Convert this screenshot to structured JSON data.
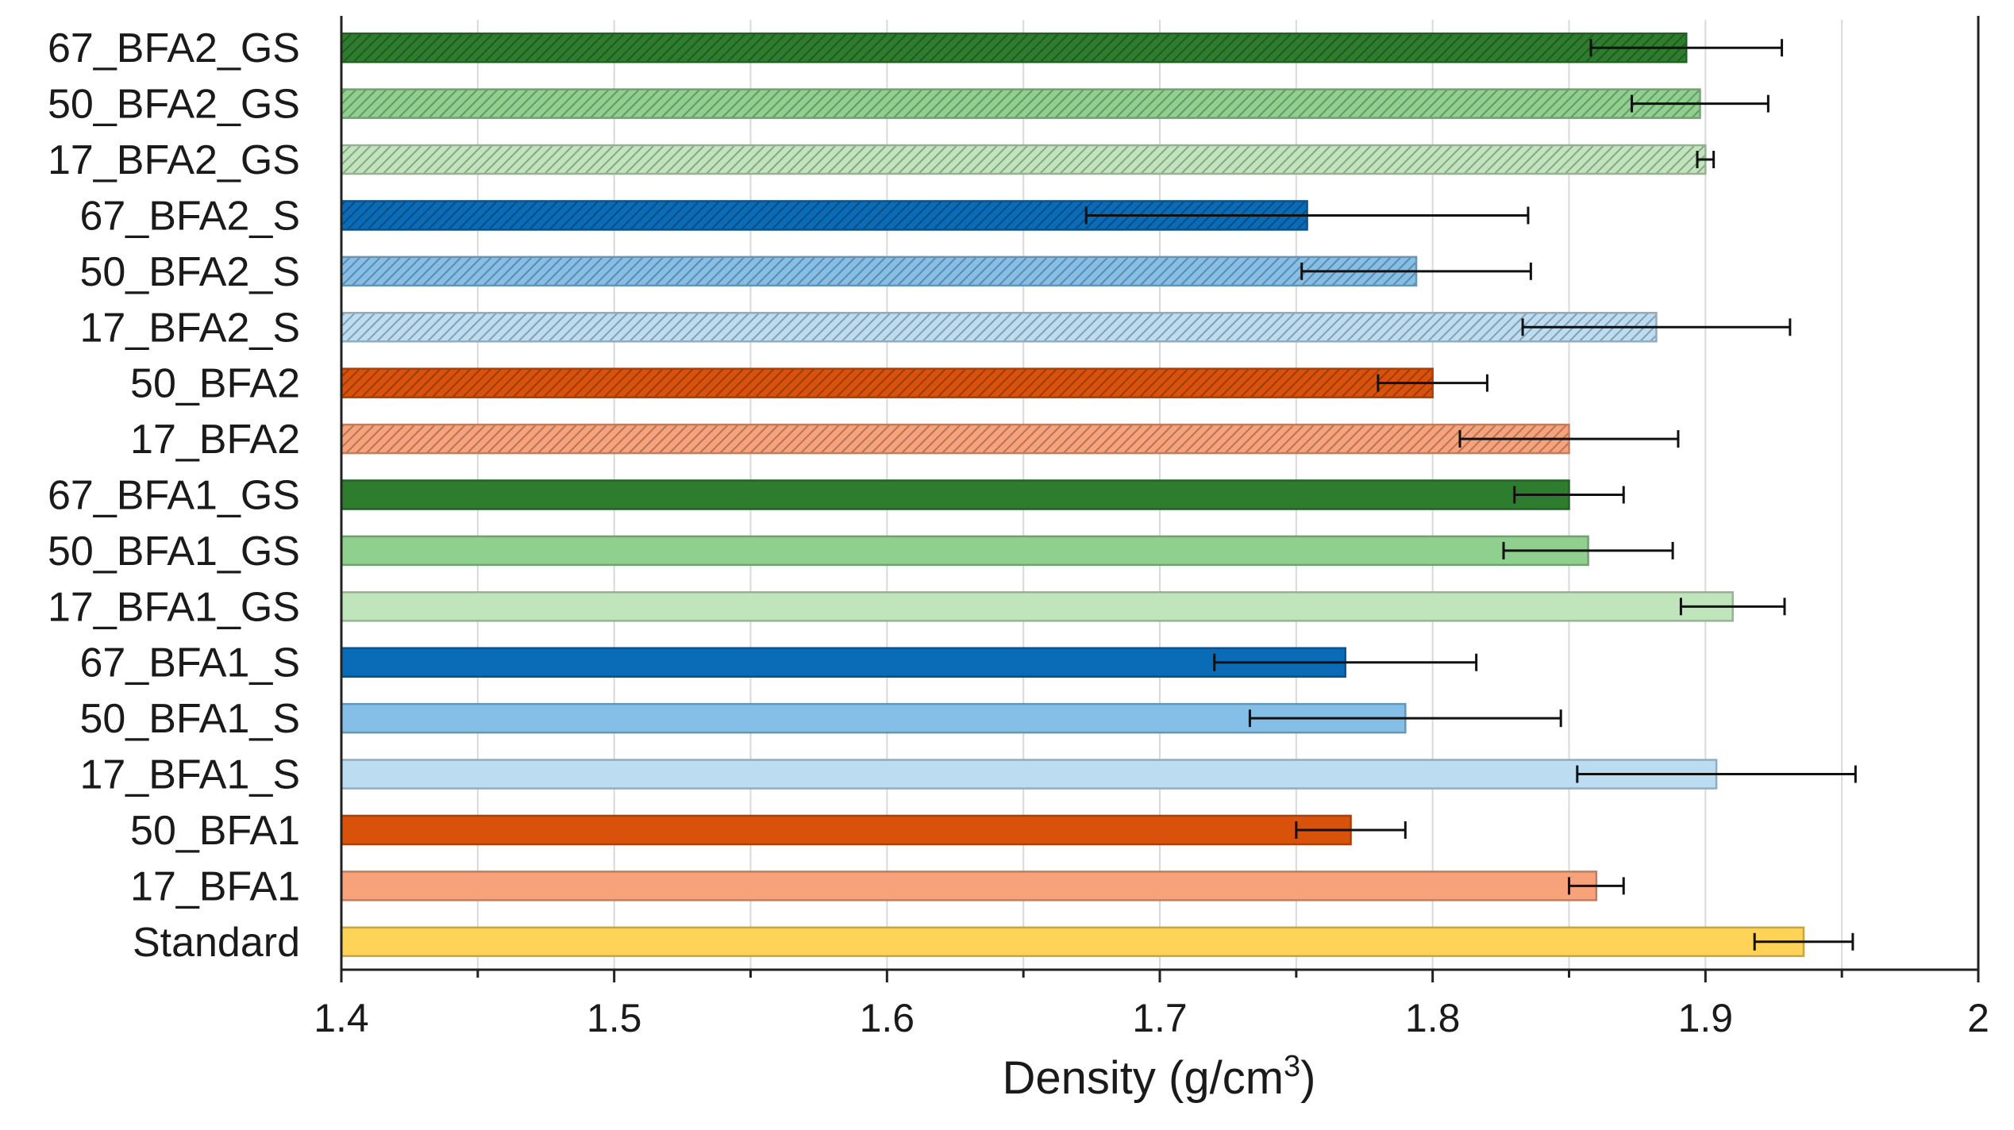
{
  "chart_data": {
    "type": "bar",
    "orientation": "horizontal",
    "xlabel_main": "Density (g/cm",
    "xlabel_sup": "3",
    "xlabel_end": ")",
    "xlim": [
      1.4,
      2.0
    ],
    "x_ticks": [
      "1.4",
      "1.5",
      "1.6",
      "1.7",
      "1.8",
      "1.9",
      "2"
    ],
    "grid": true,
    "categories": [
      "67_BFA2_GS",
      "50_BFA2_GS",
      "17_BFA2_GS",
      "67_BFA2_S",
      "50_BFA2_S",
      "17_BFA2_S",
      "50_BFA2",
      "17_BFA2",
      "67_BFA1_GS",
      "50_BFA1_GS",
      "17_BFA1_GS",
      "67_BFA1_S",
      "50_BFA1_S",
      "17_BFA1_S",
      "50_BFA1",
      "17_BFA1",
      "Standard"
    ],
    "values": [
      1.893,
      1.898,
      1.9,
      1.754,
      1.794,
      1.882,
      1.8,
      1.85,
      1.85,
      1.857,
      1.91,
      1.768,
      1.79,
      1.904,
      1.77,
      1.86,
      1.936
    ],
    "errors": [
      0.035,
      0.025,
      0.003,
      0.081,
      0.042,
      0.049,
      0.02,
      0.04,
      0.02,
      0.031,
      0.019,
      0.048,
      0.057,
      0.051,
      0.02,
      0.01,
      0.018
    ],
    "colors": {
      "dark_green": "#2e7d2e",
      "mid_green": "#8fd08f",
      "light_green": "#c0e4bc",
      "dark_blue": "#0a6bb6",
      "mid_blue": "#85bfe8",
      "light_blue": "#bcdcf2",
      "dark_orange": "#d9520b",
      "light_orange": "#f7a27a",
      "yellow": "#fed357"
    },
    "bar_styles": [
      {
        "color": "dark_green",
        "hatch": true
      },
      {
        "color": "mid_green",
        "hatch": true
      },
      {
        "color": "light_green",
        "hatch": true
      },
      {
        "color": "dark_blue",
        "hatch": true
      },
      {
        "color": "mid_blue",
        "hatch": true
      },
      {
        "color": "light_blue",
        "hatch": true
      },
      {
        "color": "dark_orange",
        "hatch": true
      },
      {
        "color": "light_orange",
        "hatch": true
      },
      {
        "color": "dark_green",
        "hatch": false
      },
      {
        "color": "mid_green",
        "hatch": false
      },
      {
        "color": "light_green",
        "hatch": false
      },
      {
        "color": "dark_blue",
        "hatch": false
      },
      {
        "color": "mid_blue",
        "hatch": false
      },
      {
        "color": "light_blue",
        "hatch": false
      },
      {
        "color": "dark_orange",
        "hatch": false
      },
      {
        "color": "light_orange",
        "hatch": false
      },
      {
        "color": "yellow",
        "hatch": false
      }
    ]
  }
}
